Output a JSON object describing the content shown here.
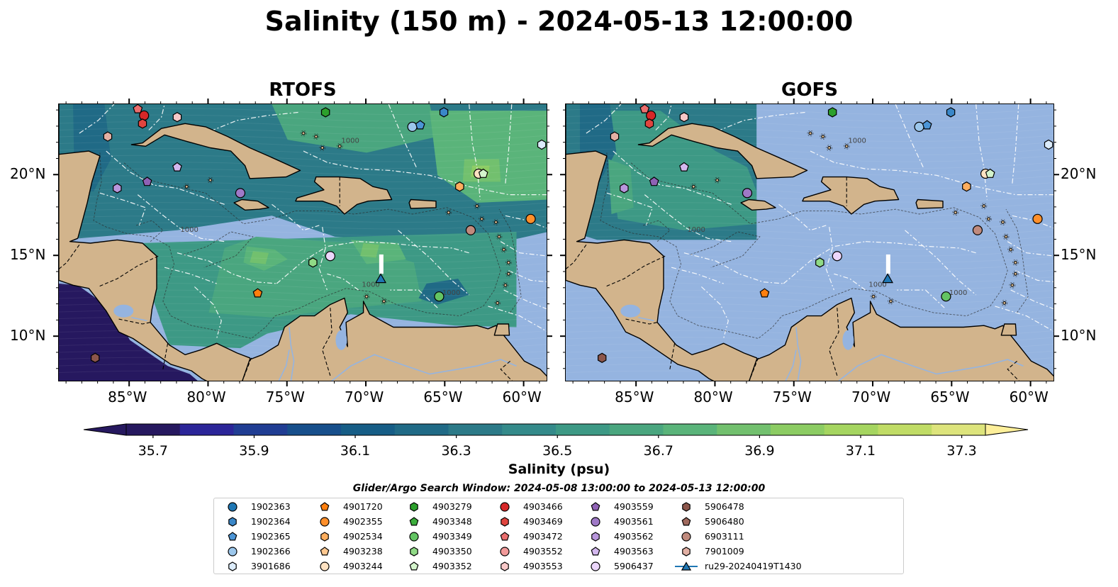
{
  "title": "Salinity (150 m) - 2024-05-13 12:00:00",
  "panels": [
    {
      "title": "RTOFS"
    },
    {
      "title": "GOFS"
    }
  ],
  "lon_ticks": [
    "85°W",
    "80°W",
    "75°W",
    "70°W",
    "65°W",
    "60°W"
  ],
  "lat_ticks": [
    "20°N",
    "15°N",
    "10°N"
  ],
  "contour_label": "1000",
  "colorbar": {
    "label": "Salinity (psu)",
    "ticks": [
      "35.7",
      "35.9",
      "36.1",
      "36.3",
      "36.5",
      "36.7",
      "36.9",
      "37.1",
      "37.3"
    ],
    "min": 35.7,
    "max": 37.4,
    "step": 0.1,
    "colors": [
      "#26185f",
      "#2b2598",
      "#203d93",
      "#174f8b",
      "#165d86",
      "#206a86",
      "#2c7a88",
      "#348a8a",
      "#3d9985",
      "#4aa67f",
      "#5ab47a",
      "#72c06e",
      "#8ccc63",
      "#a5d560",
      "#c0dc66",
      "#dde47c",
      "#fdef9a"
    ]
  },
  "map_colors": {
    "land": "#d2b48c",
    "ocean": "#95b4e0"
  },
  "search_window": "Glider/Argo Search Window: 2024-05-08 13:00:00 to 2024-05-13 12:00:00",
  "legend": [
    {
      "label": "1902363",
      "color": "#1f77b4",
      "marker": "circle"
    },
    {
      "label": "1902364",
      "color": "#3a87c8",
      "marker": "hexagon"
    },
    {
      "label": "1902365",
      "color": "#4c95d6",
      "marker": "pentagon"
    },
    {
      "label": "1902366",
      "color": "#9cc7ec",
      "marker": "circle"
    },
    {
      "label": "3901686",
      "color": "#dcecfb",
      "marker": "hexagon"
    },
    {
      "label": "4901720",
      "color": "#ff7f0e",
      "marker": "pentagon"
    },
    {
      "label": "4902355",
      "color": "#ff8f2a",
      "marker": "circle"
    },
    {
      "label": "4902534",
      "color": "#ffae5e",
      "marker": "hexagon"
    },
    {
      "label": "4903238",
      "color": "#ffc890",
      "marker": "pentagon"
    },
    {
      "label": "4903244",
      "color": "#ffe2c2",
      "marker": "circle"
    },
    {
      "label": "4903279",
      "color": "#2ca02c",
      "marker": "hexagon"
    },
    {
      "label": "4903348",
      "color": "#3cae3c",
      "marker": "pentagon"
    },
    {
      "label": "4903349",
      "color": "#63c463",
      "marker": "circle"
    },
    {
      "label": "4903350",
      "color": "#90da86",
      "marker": "hexagon"
    },
    {
      "label": "4903352",
      "color": "#d4f4cc",
      "marker": "pentagon"
    },
    {
      "label": "4903466",
      "color": "#d62728",
      "marker": "circle"
    },
    {
      "label": "4903469",
      "color": "#e0453f",
      "marker": "hexagon"
    },
    {
      "label": "4903472",
      "color": "#ea6e6e",
      "marker": "pentagon"
    },
    {
      "label": "4903552",
      "color": "#f29a9a",
      "marker": "circle"
    },
    {
      "label": "4903553",
      "color": "#f8c8c8",
      "marker": "hexagon"
    },
    {
      "label": "4903559",
      "color": "#8f62b5",
      "marker": "pentagon"
    },
    {
      "label": "4903561",
      "color": "#9f79c7",
      "marker": "circle"
    },
    {
      "label": "4903562",
      "color": "#b896dc",
      "marker": "hexagon"
    },
    {
      "label": "4903563",
      "color": "#d3b7ee",
      "marker": "pentagon"
    },
    {
      "label": "5906437",
      "color": "#ecd6fb",
      "marker": "circle"
    },
    {
      "label": "5906478",
      "color": "#8c564b",
      "marker": "hexagon"
    },
    {
      "label": "5906480",
      "color": "#a06a5e",
      "marker": "pentagon"
    },
    {
      "label": "6903111",
      "color": "#c08a7d",
      "marker": "circle"
    },
    {
      "label": "7901009",
      "color": "#e2b0a4",
      "marker": "hexagon"
    },
    {
      "label": "ru29-20240419T1430",
      "color": "#1f77b4",
      "marker": "triangle"
    }
  ],
  "floats": [
    {
      "id": "4903466",
      "lon": -84.1,
      "lat": 23.7,
      "color": "#d62728",
      "marker": "circle"
    },
    {
      "id": "4903469",
      "lon": -84.2,
      "lat": 23.2,
      "color": "#e0453f",
      "marker": "hexagon"
    },
    {
      "id": "4903472",
      "lon": -84.5,
      "lat": 24.1,
      "color": "#ea6e6e",
      "marker": "pentagon"
    },
    {
      "id": "4903553",
      "lon": -82.0,
      "lat": 23.6,
      "color": "#f8c8c8",
      "marker": "hexagon"
    },
    {
      "id": "7901009",
      "lon": -86.4,
      "lat": 22.4,
      "color": "#e2b0a4",
      "marker": "hexagon"
    },
    {
      "id": "4903279",
      "lon": -72.6,
      "lat": 23.9,
      "color": "#2ca02c",
      "marker": "hexagon"
    },
    {
      "id": "1902364",
      "lon": -65.1,
      "lat": 23.9,
      "color": "#3a87c8",
      "marker": "hexagon"
    },
    {
      "id": "1902366",
      "lon": -67.1,
      "lat": 23.0,
      "color": "#9cc7ec",
      "marker": "circle"
    },
    {
      "id": "1902365",
      "lon": -66.6,
      "lat": 23.1,
      "color": "#4c95d6",
      "marker": "pentagon"
    },
    {
      "id": "3901686",
      "lon": -58.9,
      "lat": 21.9,
      "color": "#dcecfb",
      "marker": "hexagon"
    },
    {
      "id": "4903563",
      "lon": -82.0,
      "lat": 20.5,
      "color": "#d3b7ee",
      "marker": "pentagon"
    },
    {
      "id": "4903559",
      "lon": -83.9,
      "lat": 19.6,
      "color": "#8f62b5",
      "marker": "pentagon"
    },
    {
      "id": "4903562",
      "lon": -85.8,
      "lat": 19.2,
      "color": "#b896dc",
      "marker": "hexagon"
    },
    {
      "id": "4903561",
      "lon": -78.0,
      "lat": 18.9,
      "color": "#9f79c7",
      "marker": "circle"
    },
    {
      "id": "4903244",
      "lon": -62.9,
      "lat": 20.1,
      "color": "#ffe2c2",
      "marker": "circle"
    },
    {
      "id": "4903352",
      "lon": -62.6,
      "lat": 20.1,
      "color": "#d4f4cc",
      "marker": "pentagon"
    },
    {
      "id": "4902534",
      "lon": -64.1,
      "lat": 19.3,
      "color": "#ffae5e",
      "marker": "hexagon"
    },
    {
      "id": "4902355",
      "lon": -59.6,
      "lat": 17.3,
      "color": "#ff8f2a",
      "marker": "circle"
    },
    {
      "id": "6903111",
      "lon": -63.4,
      "lat": 16.6,
      "color": "#c08a7d",
      "marker": "circle"
    },
    {
      "id": "5906437",
      "lon": -72.3,
      "lat": 15.0,
      "color": "#ecd6fb",
      "marker": "circle"
    },
    {
      "id": "4903350",
      "lon": -73.4,
      "lat": 14.6,
      "color": "#90da86",
      "marker": "hexagon"
    },
    {
      "id": "4903349",
      "lon": -65.4,
      "lat": 12.5,
      "color": "#63c463",
      "marker": "circle"
    },
    {
      "id": "4901720",
      "lon": -76.9,
      "lat": 12.7,
      "color": "#ff7f0e",
      "marker": "pentagon"
    },
    {
      "id": "5906478",
      "lon": -87.2,
      "lat": 8.7,
      "color": "#8c564b",
      "marker": "hexagon"
    }
  ],
  "glider": {
    "id": "ru29-20240419T1430",
    "lon": -69.1,
    "lat": 13.6,
    "color": "#1f77b4"
  }
}
